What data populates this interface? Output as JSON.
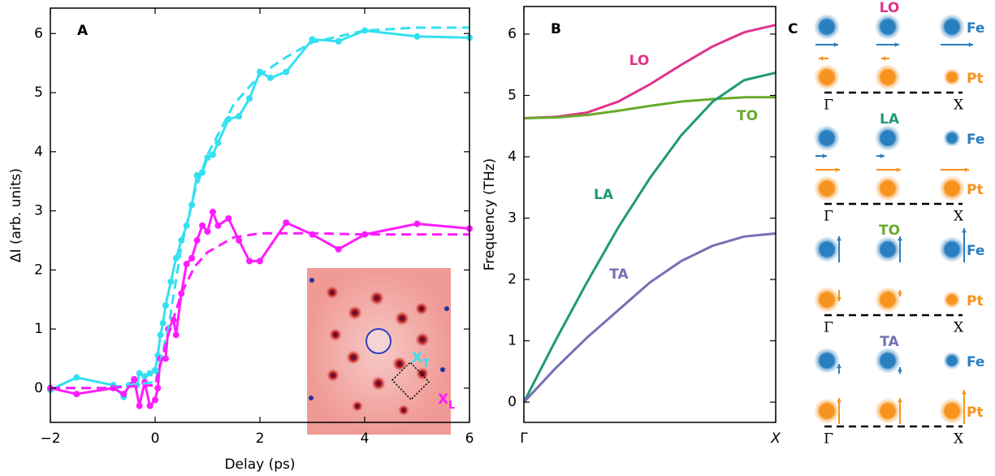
{
  "chart_data": [
    {
      "type": "line",
      "panel_label": "A",
      "xlabel": "Delay (ps)",
      "ylabel": "ΔI (arb. units)",
      "xlim": [
        -2,
        6
      ],
      "ylim": [
        -0.58,
        6.43
      ],
      "xticks": [
        {
          "value": -2,
          "label": "−2"
        },
        0,
        2,
        4,
        6
      ],
      "yticks": [
        0,
        1,
        2,
        3,
        4,
        5,
        6
      ],
      "series": [
        {
          "color": "#33e0f0",
          "style": "solid",
          "markers": true,
          "x": [
            -2,
            -1.5,
            -0.8,
            -0.6,
            -0.5,
            -0.35,
            -0.3,
            -0.2,
            -0.1,
            0,
            0.05,
            0.1,
            0.15,
            0.2,
            0.3,
            0.4,
            0.5,
            0.6,
            0.7,
            0.8,
            0.9,
            1,
            1.1,
            1.2,
            1.4,
            1.6,
            1.8,
            2,
            2.2,
            2.5,
            3,
            3.5,
            4,
            5,
            6
          ],
          "values": [
            -0.03,
            0.18,
            0.05,
            -0.15,
            0.05,
            0.05,
            0.25,
            0.2,
            0.25,
            0.3,
            0.55,
            0.9,
            1.1,
            1.4,
            1.8,
            2.2,
            2.5,
            2.75,
            3.1,
            3.6,
            3.65,
            3.9,
            3.95,
            4.15,
            4.55,
            4.6,
            4.9,
            5.35,
            5.25,
            5.35,
            5.9,
            5.87,
            6.05,
            5.95,
            5.93
          ]
        },
        {
          "color": "#ff1cff",
          "style": "solid",
          "markers": true,
          "x": [
            -2,
            -1.5,
            -0.8,
            -0.6,
            -0.4,
            -0.3,
            -0.2,
            -0.1,
            0,
            0.05,
            0.1,
            0.2,
            0.25,
            0.35,
            0.4,
            0.5,
            0.6,
            0.7,
            0.8,
            0.9,
            1,
            1.1,
            1.2,
            1.4,
            1.6,
            1.8,
            2,
            2.5,
            3,
            3.5,
            4,
            5,
            6
          ],
          "values": [
            0,
            -0.1,
            0,
            -0.1,
            0.15,
            -0.3,
            0.1,
            -0.3,
            -0.2,
            0,
            0.5,
            0.5,
            1.0,
            1.15,
            0.9,
            1.6,
            2.1,
            2.2,
            2.5,
            2.75,
            2.65,
            2.98,
            2.75,
            2.87,
            2.5,
            2.15,
            2.15,
            2.8,
            2.6,
            2.35,
            2.6,
            2.78,
            2.7
          ]
        },
        {
          "color": "#33e0f0",
          "style": "dashed",
          "markers": false,
          "x": [
            -2,
            -1,
            0,
            0.25,
            0.5,
            0.75,
            1,
            1.5,
            2,
            2.5,
            3,
            4,
            5,
            6
          ],
          "values": [
            0,
            0,
            0.1,
            1.0,
            2.4,
            3.3,
            3.95,
            4.8,
            5.3,
            5.6,
            5.85,
            6.05,
            6.1,
            6.1
          ]
        },
        {
          "color": "#ff1cff",
          "style": "dashed",
          "markers": false,
          "x": [
            -2,
            -1,
            0,
            0.25,
            0.5,
            0.75,
            1,
            1.5,
            2,
            3,
            4,
            6
          ],
          "values": [
            0,
            0,
            0.05,
            0.9,
            1.6,
            2.05,
            2.3,
            2.55,
            2.62,
            2.62,
            2.6,
            2.6
          ]
        }
      ],
      "inset_labels": [
        {
          "text": "X",
          "sub": "T",
          "color": "#33e0f0"
        },
        {
          "text": "X",
          "sub": "L",
          "color": "#ff1cff"
        }
      ]
    },
    {
      "type": "line",
      "panel_label": "B",
      "ylabel": "Frequency (THz)",
      "xlim": [
        0,
        1
      ],
      "ylim": [
        -0.33,
        6.45
      ],
      "xticks": [
        {
          "value": 0,
          "label": "Γ"
        },
        {
          "value": 1,
          "label": "X"
        }
      ],
      "yticks": [
        0,
        1,
        2,
        3,
        4,
        5,
        6
      ],
      "series": [
        {
          "name": "LO",
          "color": "#e0338a",
          "style": "solid",
          "markers": false,
          "x": [
            0,
            0.125,
            0.25,
            0.375,
            0.5,
            0.625,
            0.75,
            0.875,
            1
          ],
          "values": [
            4.63,
            4.65,
            4.72,
            4.9,
            5.18,
            5.5,
            5.8,
            6.03,
            6.15
          ]
        },
        {
          "name": "TO",
          "color": "#6aaa2a",
          "style": "solid",
          "markers": false,
          "x": [
            0,
            0.125,
            0.25,
            0.375,
            0.5,
            0.625,
            0.75,
            0.875,
            1
          ],
          "values": [
            4.63,
            4.64,
            4.68,
            4.75,
            4.83,
            4.9,
            4.94,
            4.97,
            4.97
          ]
        },
        {
          "name": "LA",
          "color": "#1f9a76",
          "style": "solid",
          "markers": false,
          "x": [
            0,
            0.125,
            0.25,
            0.375,
            0.5,
            0.625,
            0.75,
            0.875,
            1
          ],
          "values": [
            0,
            1.0,
            1.95,
            2.85,
            3.65,
            4.35,
            4.9,
            5.25,
            5.37
          ]
        },
        {
          "name": "TA",
          "color": "#7570b3",
          "style": "solid",
          "markers": false,
          "x": [
            0,
            0.125,
            0.25,
            0.375,
            0.5,
            0.625,
            0.75,
            0.875,
            1
          ],
          "values": [
            0,
            0.55,
            1.05,
            1.5,
            1.95,
            2.3,
            2.55,
            2.7,
            2.75
          ]
        }
      ]
    }
  ],
  "panel_c": {
    "label": "C",
    "modes": [
      {
        "name": "LO",
        "color": "#e0338a"
      },
      {
        "name": "LA",
        "color": "#1f9a76"
      },
      {
        "name": "TO",
        "color": "#6aaa2a"
      },
      {
        "name": "TA",
        "color": "#7570b3"
      }
    ],
    "atoms": [
      {
        "name": "Fe",
        "color": "#2a7fc0"
      },
      {
        "name": "Pt",
        "color": "#f7931e"
      }
    ],
    "ends": [
      "Γ",
      "X"
    ]
  }
}
